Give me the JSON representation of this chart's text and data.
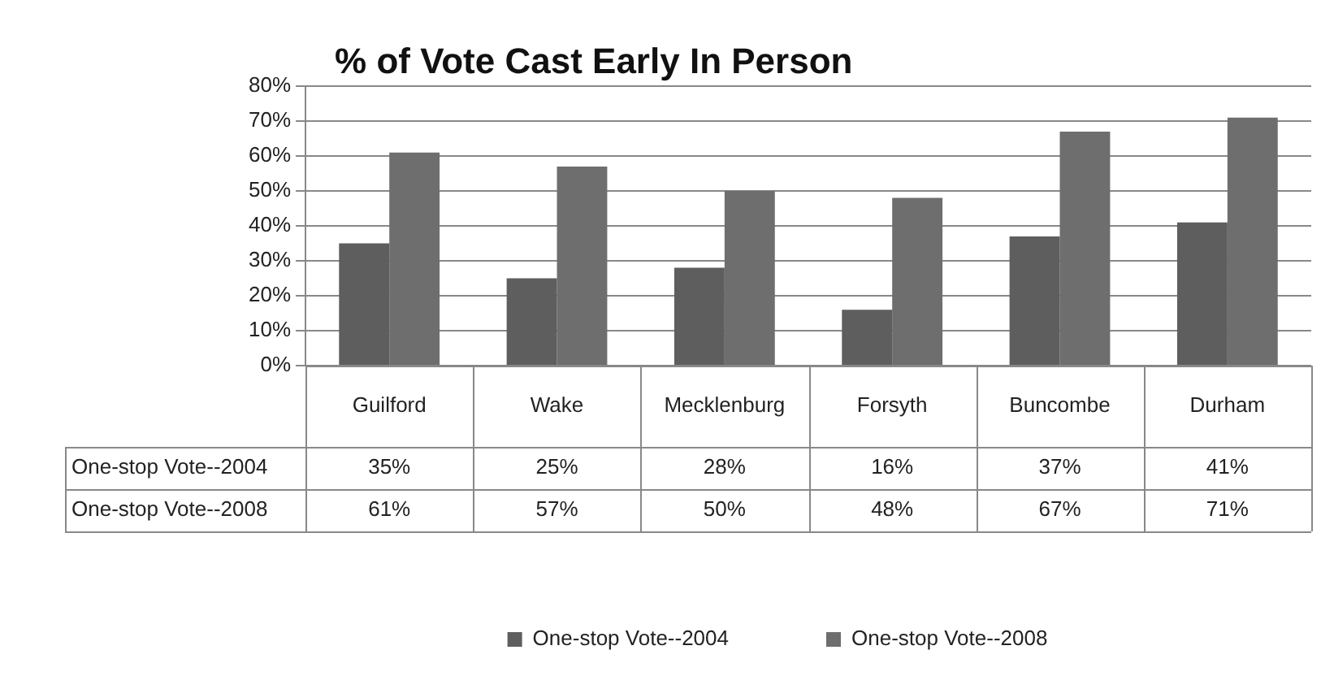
{
  "chart_data": {
    "type": "bar",
    "title": "% of Vote Cast Early In Person",
    "categories": [
      "Guilford",
      "Wake",
      "Mecklenburg",
      "Forsyth",
      "Buncombe",
      "Durham"
    ],
    "series": [
      {
        "name": "One-stop Vote--2004",
        "color": "#5e5e5e",
        "values": [
          35,
          25,
          28,
          16,
          37,
          41
        ],
        "value_labels": [
          "35%",
          "25%",
          "28%",
          "16%",
          "37%",
          "41%"
        ]
      },
      {
        "name": "One-stop Vote--2008",
        "color": "#6e6e6e",
        "values": [
          61,
          57,
          50,
          48,
          67,
          71
        ],
        "value_labels": [
          "61%",
          "57%",
          "50%",
          "48%",
          "67%",
          "71%"
        ]
      }
    ],
    "ylim": [
      0,
      80
    ],
    "yticks": [
      {
        "value": 0,
        "label": "0%"
      },
      {
        "value": 10,
        "label": "10%"
      },
      {
        "value": 20,
        "label": "20%"
      },
      {
        "value": 30,
        "label": "30%"
      },
      {
        "value": 40,
        "label": "40%"
      },
      {
        "value": 50,
        "label": "50%"
      },
      {
        "value": 60,
        "label": "60%"
      },
      {
        "value": 70,
        "label": "70%"
      },
      {
        "value": 80,
        "label": "80%"
      }
    ],
    "grid": "y",
    "legend": "bottom"
  }
}
